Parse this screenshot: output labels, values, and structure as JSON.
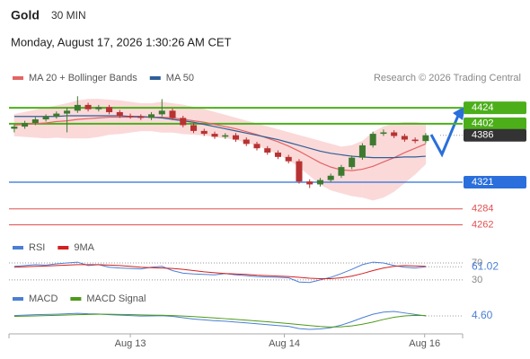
{
  "header": {
    "symbol": "Gold",
    "interval": "30 MIN",
    "datetime": "Monday, August 17, 2026 1:30:26 AM CET",
    "source": "Research © 2026 Trading Central"
  },
  "chart_data": [
    {
      "type": "candlestick",
      "x": [
        0,
        1,
        2,
        3,
        4,
        5,
        6,
        7,
        8,
        9,
        10,
        11,
        12,
        13,
        14,
        15,
        16,
        17,
        18,
        19,
        20,
        21,
        22,
        23,
        24,
        25,
        26,
        27,
        28,
        29,
        30,
        31,
        32,
        33,
        34,
        35,
        36,
        37,
        38,
        39
      ],
      "open": [
        4395,
        4398,
        4403,
        4408,
        4412,
        4416,
        4420,
        4428,
        4422,
        4425,
        4418,
        4413,
        4412,
        4410,
        4415,
        4420,
        4410,
        4400,
        4392,
        4388,
        4384,
        4386,
        4380,
        4374,
        4368,
        4362,
        4356,
        4350,
        4322,
        4318,
        4324,
        4330,
        4342,
        4355,
        4372,
        4388,
        4390,
        4385,
        4380,
        4378
      ],
      "high": [
        4401,
        4406,
        4411,
        4415,
        4419,
        4424,
        4440,
        4431,
        4428,
        4428,
        4421,
        4416,
        4415,
        4418,
        4436,
        4423,
        4413,
        4403,
        4395,
        4391,
        4389,
        4389,
        4383,
        4377,
        4371,
        4365,
        4359,
        4353,
        4325,
        4327,
        4333,
        4345,
        4358,
        4375,
        4391,
        4394,
        4393,
        4388,
        4383,
        4389
      ],
      "low": [
        4390,
        4395,
        4400,
        4405,
        4409,
        4390,
        4417,
        4419,
        4419,
        4415,
        4410,
        4409,
        4407,
        4407,
        4412,
        4407,
        4397,
        4389,
        4385,
        4381,
        4381,
        4377,
        4371,
        4365,
        4359,
        4353,
        4347,
        4319,
        4313,
        4315,
        4321,
        4327,
        4339,
        4352,
        4369,
        4385,
        4382,
        4377,
        4375,
        4375
      ],
      "close": [
        4398,
        4403,
        4408,
        4412,
        4416,
        4420,
        4428,
        4422,
        4425,
        4418,
        4413,
        4412,
        4410,
        4415,
        4420,
        4410,
        4400,
        4392,
        4388,
        4384,
        4386,
        4380,
        4374,
        4368,
        4362,
        4356,
        4350,
        4322,
        4318,
        4324,
        4330,
        4342,
        4355,
        4372,
        4388,
        4390,
        4385,
        4380,
        4378,
        4386
      ],
      "up_color": "#3d7a30",
      "down_color": "#b83232",
      "series": [
        {
          "name": "MA 20 + Bollinger Bands",
          "color": "#e46464",
          "band_color": "#fbd9d9",
          "values": [
            4400,
            4401,
            4402,
            4403,
            4405,
            4406,
            4408,
            4409,
            4410,
            4411,
            4411,
            4411,
            4411,
            4411,
            4411,
            4410,
            4408,
            4406,
            4404,
            4401,
            4398,
            4395,
            4391,
            4387,
            4382,
            4377,
            4371,
            4364,
            4356,
            4348,
            4342,
            4338,
            4337,
            4339,
            4343,
            4349,
            4355,
            4362,
            4368,
            4374
          ],
          "upper": [
            4415,
            4418,
            4421,
            4424,
            4427,
            4430,
            4434,
            4436,
            4436,
            4435,
            4434,
            4432,
            4430,
            4430,
            4432,
            4430,
            4428,
            4425,
            4422,
            4418,
            4414,
            4410,
            4406,
            4402,
            4398,
            4394,
            4390,
            4386,
            4382,
            4378,
            4374,
            4370,
            4372,
            4378,
            4390,
            4398,
            4402,
            4404,
            4404,
            4402
          ],
          "lower": [
            4385,
            4384,
            4383,
            4382,
            4383,
            4382,
            4382,
            4382,
            4384,
            4387,
            4388,
            4390,
            4392,
            4392,
            4390,
            4390,
            4388,
            4387,
            4386,
            4384,
            4382,
            4380,
            4376,
            4372,
            4366,
            4360,
            4352,
            4342,
            4330,
            4318,
            4310,
            4306,
            4302,
            4300,
            4296,
            4300,
            4308,
            4320,
            4332,
            4346
          ]
        },
        {
          "name": "MA 50",
          "color": "#2f5f98",
          "values": [
            4412,
            4412,
            4412,
            4412,
            4412,
            4413,
            4413,
            4413,
            4413,
            4413,
            4413,
            4412,
            4412,
            4411,
            4410,
            4408,
            4406,
            4404,
            4401,
            4398,
            4395,
            4392,
            4389,
            4386,
            4383,
            4380,
            4376,
            4372,
            4368,
            4364,
            4361,
            4359,
            4357,
            4356,
            4355,
            4355,
            4355,
            4356,
            4356,
            4357
          ]
        }
      ],
      "levels": [
        {
          "value": 4424,
          "color": "#4caf1a",
          "line": true
        },
        {
          "value": 4402,
          "color": "#4caf1a",
          "line": true
        },
        {
          "value": 4386,
          "color": "#333333",
          "line": false
        },
        {
          "value": 4321,
          "color": "#2a6fdb",
          "line": true
        },
        {
          "value": 4284,
          "color": "#e05050",
          "line": true,
          "text_only": true
        },
        {
          "value": 4262,
          "color": "#e05050",
          "line": true,
          "text_only": true
        }
      ],
      "xlim": [
        -0.5,
        42.5
      ],
      "ylim": [
        4244,
        4449
      ]
    },
    {
      "type": "line",
      "x": [
        0,
        1,
        2,
        3,
        4,
        5,
        6,
        7,
        8,
        9,
        10,
        11,
        12,
        13,
        14,
        15,
        16,
        17,
        18,
        19,
        20,
        21,
        22,
        23,
        24,
        25,
        26,
        27,
        28,
        29,
        30,
        31,
        32,
        33,
        34,
        35,
        36,
        37,
        38,
        39
      ],
      "series": [
        {
          "name": "RSI",
          "color": "#4a7fd4",
          "values": [
            62,
            64,
            66,
            65,
            68,
            70,
            72,
            64,
            66,
            60,
            58,
            57,
            56,
            60,
            62,
            52,
            46,
            44,
            43,
            42,
            45,
            42,
            40,
            38,
            37,
            36,
            35,
            25,
            24,
            30,
            36,
            45,
            55,
            66,
            72,
            70,
            64,
            60,
            58,
            61.02
          ]
        },
        {
          "name": "9MA",
          "color": "#d42020",
          "values": [
            60,
            61,
            62,
            63,
            64,
            65,
            66,
            66,
            66,
            65,
            64,
            62,
            60,
            59,
            58,
            57,
            55,
            52,
            49,
            47,
            45,
            44,
            43,
            41,
            40,
            39,
            38,
            36,
            34,
            33,
            33,
            35,
            39,
            45,
            52,
            58,
            62,
            64,
            63,
            62
          ]
        }
      ],
      "xlim": [
        -0.5,
        42.5
      ],
      "ylim": [
        17,
        87
      ],
      "yticks": [
        30,
        70
      ],
      "last_value_series": 0
    },
    {
      "type": "line",
      "x": [
        0,
        1,
        2,
        3,
        4,
        5,
        6,
        7,
        8,
        9,
        10,
        11,
        12,
        13,
        14,
        15,
        16,
        17,
        18,
        19,
        20,
        21,
        22,
        23,
        24,
        25,
        26,
        27,
        28,
        29,
        30,
        31,
        32,
        33,
        34,
        35,
        36,
        37,
        38,
        39
      ],
      "series": [
        {
          "name": "MACD",
          "color": "#4a7fd4",
          "values": [
            5,
            5.5,
            6,
            6.2,
            6.5,
            7,
            7.5,
            7,
            6.8,
            6,
            5.5,
            5,
            4.5,
            4.6,
            4.8,
            4,
            2.5,
            1,
            0,
            -1,
            -1.5,
            -2.5,
            -3.5,
            -4.5,
            -5.5,
            -6.5,
            -7.5,
            -10,
            -11,
            -10.5,
            -9,
            -6,
            -2,
            2.5,
            6.5,
            9,
            9.7,
            8,
            6.2,
            4.6
          ],
          "value_labels": [
            null,
            null,
            null,
            null,
            null,
            null,
            null,
            null,
            null,
            null,
            null,
            null,
            null,
            null,
            null,
            null,
            null,
            null,
            null,
            null,
            null,
            null,
            null,
            null,
            null,
            null,
            null,
            null,
            null,
            null,
            null,
            null,
            null,
            null,
            null,
            null,
            null,
            null,
            null,
            "4.60"
          ]
        },
        {
          "name": "MACD Signal",
          "color": "#4c9a1a",
          "values": [
            4,
            4.3,
            4.6,
            4.9,
            5.2,
            5.6,
            6,
            6.3,
            6.5,
            6.5,
            6.3,
            6.1,
            5.8,
            5.5,
            5.3,
            5,
            4.5,
            3.8,
            3,
            2.2,
            1.4,
            0.6,
            -0.3,
            -1.2,
            -2.2,
            -3.2,
            -4.2,
            -5.4,
            -6.6,
            -7.6,
            -8.2,
            -8,
            -7,
            -5,
            -2.5,
            0.5,
            3,
            4.6,
            5.2,
            5.1
          ]
        }
      ],
      "xlim": [
        -0.5,
        42.5
      ],
      "ylim": [
        -12,
        17
      ],
      "last_value_series": 0,
      "xticks": [
        {
          "value": 11,
          "label": "Aug 13"
        },
        {
          "value": 25.6,
          "label": "Aug 14"
        },
        {
          "value": 38.9,
          "label": "Aug 16"
        }
      ]
    }
  ]
}
